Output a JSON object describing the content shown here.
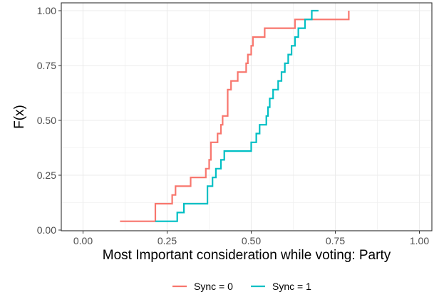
{
  "chart_data": {
    "type": "line",
    "subtype": "empirical-cdf-step",
    "xlabel": "Most Important consideration while voting: Party",
    "ylabel": "F(x)",
    "xlim": [
      0.0,
      1.0
    ],
    "ylim": [
      0.0,
      1.0
    ],
    "x_ticks": [
      "0.00",
      "0.25",
      "0.50",
      "0.75",
      "1.00"
    ],
    "y_ticks": [
      "0.00",
      "0.25",
      "0.50",
      "0.75",
      "1.00"
    ],
    "grid": true,
    "legend_position": "bottom",
    "series": [
      {
        "name": "Sync = 0",
        "color": "#F8766D",
        "x": [
          0.11,
          0.215,
          0.215,
          0.265,
          0.265,
          0.275,
          0.275,
          0.32,
          0.32,
          0.365,
          0.365,
          0.375,
          0.375,
          0.38,
          0.38,
          0.4,
          0.4,
          0.41,
          0.41,
          0.415,
          0.415,
          0.43,
          0.43,
          0.44,
          0.44,
          0.46,
          0.46,
          0.485,
          0.485,
          0.49,
          0.49,
          0.5,
          0.5,
          0.505,
          0.505,
          0.51,
          0.51,
          0.52,
          0.52,
          0.54,
          0.54,
          0.63,
          0.63,
          0.79,
          0.79
        ],
        "y": [
          0.04,
          0.04,
          0.12,
          0.12,
          0.16,
          0.16,
          0.2,
          0.2,
          0.24,
          0.24,
          0.28,
          0.28,
          0.32,
          0.32,
          0.4,
          0.4,
          0.44,
          0.44,
          0.48,
          0.48,
          0.52,
          0.52,
          0.64,
          0.64,
          0.68,
          0.68,
          0.72,
          0.72,
          0.76,
          0.76,
          0.8,
          0.8,
          0.84,
          0.84,
          0.88,
          0.88,
          0.88,
          0.88,
          0.88,
          0.88,
          0.92,
          0.92,
          0.96,
          0.96,
          1.0
        ]
      },
      {
        "name": "Sync = 1",
        "color": "#00BFC4",
        "x": [
          0.215,
          0.28,
          0.28,
          0.3,
          0.3,
          0.37,
          0.37,
          0.385,
          0.385,
          0.395,
          0.395,
          0.41,
          0.41,
          0.42,
          0.42,
          0.5,
          0.5,
          0.515,
          0.515,
          0.525,
          0.525,
          0.545,
          0.545,
          0.55,
          0.55,
          0.555,
          0.555,
          0.565,
          0.565,
          0.57,
          0.57,
          0.58,
          0.58,
          0.59,
          0.59,
          0.6,
          0.6,
          0.61,
          0.61,
          0.62,
          0.62,
          0.63,
          0.63,
          0.64,
          0.64,
          0.66,
          0.66,
          0.68,
          0.68,
          0.7,
          0.7
        ],
        "y": [
          0.04,
          0.04,
          0.08,
          0.08,
          0.12,
          0.12,
          0.2,
          0.2,
          0.24,
          0.24,
          0.28,
          0.28,
          0.32,
          0.32,
          0.36,
          0.36,
          0.4,
          0.4,
          0.44,
          0.44,
          0.48,
          0.48,
          0.52,
          0.52,
          0.56,
          0.56,
          0.6,
          0.6,
          0.64,
          0.64,
          0.64,
          0.64,
          0.68,
          0.68,
          0.72,
          0.72,
          0.76,
          0.76,
          0.8,
          0.8,
          0.84,
          0.84,
          0.88,
          0.88,
          0.92,
          0.92,
          0.96,
          0.96,
          1.0,
          1.0,
          1.0
        ]
      }
    ]
  }
}
